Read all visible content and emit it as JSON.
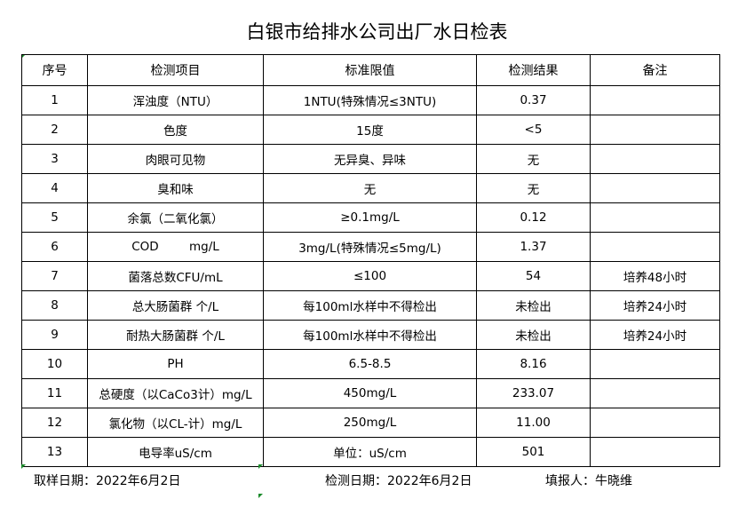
{
  "title": "白银市给排水公司出厂水日检表",
  "headers": [
    "序号",
    "检测项目",
    "标准限值",
    "检测结果",
    "备注"
  ],
  "rows": [
    [
      "1",
      "浑浊度（NTU）",
      "1NTU(特殊情况≤3NTU)",
      "0.37",
      ""
    ],
    [
      "2",
      "色度",
      "15度",
      "<5",
      ""
    ],
    [
      "3",
      "肉眼可见物",
      "无异臭、异味",
      "无",
      ""
    ],
    [
      "4",
      "臭和味",
      "无",
      "无",
      ""
    ],
    [
      "5",
      "余氯（二氧化氯）",
      "≥0.1mg/L",
      "0.12",
      ""
    ],
    [
      "6",
      "COD        mg/L",
      "3mg/L(特殊情况≤5mg/L)",
      "1.37",
      ""
    ],
    [
      "7",
      "菌落总数CFU/mL",
      "≤100",
      "54",
      "培养48小时"
    ],
    [
      "8",
      "总大肠菌群 个/L",
      "每100ml水样中不得检出",
      "未检出",
      "培养24小时"
    ],
    [
      "9",
      "耐热大肠菌群 个/L",
      "每100ml水样中不得检出",
      "未检出",
      "培养24小时"
    ],
    [
      "10",
      "PH",
      "6.5-8.5",
      "8.16",
      ""
    ],
    [
      "11",
      "总硬度（以CaCo3计）mg/L",
      "450mg/L",
      "233.07",
      ""
    ],
    [
      "12",
      "氯化物（以CL-计）mg/L",
      "250mg/L",
      "11.00",
      ""
    ],
    [
      "13",
      "电导率uS/cm",
      "单位：uS/cm",
      "501",
      ""
    ]
  ],
  "footer": {
    "sampling_date": "取样日期：2022年6月2日",
    "test_date": "检测日期：2022年6月2日",
    "reporter": "填报人：牛晓维"
  }
}
